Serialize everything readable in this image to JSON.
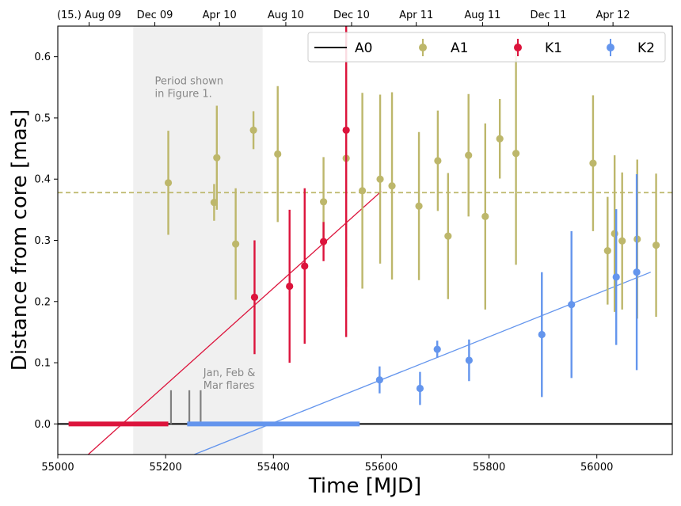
{
  "chart_data": {
    "type": "scatter",
    "xlabel": "Time [MJD]",
    "ylabel": "Distance from core [mas]",
    "xlim": [
      55000,
      56140
    ],
    "ylim": [
      -0.05,
      0.65
    ],
    "x_ticks": [
      "55000",
      "55200",
      "55400",
      "55600",
      "55800",
      "56000"
    ],
    "x_tick_values": [
      55000,
      55200,
      55400,
      55600,
      55800,
      56000
    ],
    "y_ticks": [
      "0.0",
      "0.1",
      "0.2",
      "0.3",
      "0.4",
      "0.5",
      "0.6"
    ],
    "y_tick_values": [
      0.0,
      0.1,
      0.2,
      0.3,
      0.4,
      0.5,
      0.6
    ],
    "top_ticks": [
      {
        "label": "(15.) Aug 09",
        "mjd": 55058
      },
      {
        "label": "Dec 09",
        "mjd": 55180
      },
      {
        "label": "Apr 10",
        "mjd": 55300
      },
      {
        "label": "Aug 10",
        "mjd": 55423
      },
      {
        "label": "Dec 10",
        "mjd": 55545
      },
      {
        "label": "Apr 11",
        "mjd": 55665
      },
      {
        "label": "Aug 11",
        "mjd": 55788
      },
      {
        "label": "Dec 11",
        "mjd": 55910
      },
      {
        "label": "Apr 12",
        "mjd": 56030
      }
    ],
    "shaded_period": {
      "x0": 55140,
      "x1": 55380,
      "label_lines": [
        "Period shown",
        "in Figure 1."
      ]
    },
    "flares_label_lines": [
      "Jan, Feb &",
      "Mar flares"
    ],
    "flare_lines": [
      55210,
      55244,
      55265
    ],
    "flare_line_top": 0.055,
    "a1_mean": 0.378,
    "colors": {
      "A0": "#000000",
      "A1": "#bdb76b",
      "K1": "#dc143c",
      "K2": "#6495ed",
      "shade": "#f0f0f0",
      "flare": "#808080"
    },
    "series": [
      {
        "name": "A0",
        "kind": "line",
        "x": [
          55000,
          56140
        ],
        "y": [
          0,
          0
        ]
      },
      {
        "name": "A1",
        "kind": "errorbar",
        "x": [
          55205,
          55290,
          55295,
          55330,
          55363,
          55408,
          55493,
          55535,
          55565,
          55598,
          55620,
          55670,
          55705,
          55724,
          55762,
          55793,
          55820,
          55850,
          55993,
          56020,
          56033,
          56047,
          56075,
          56110
        ],
        "y": [
          0.394,
          0.362,
          0.435,
          0.294,
          0.48,
          0.441,
          0.363,
          0.434,
          0.381,
          0.4,
          0.389,
          0.356,
          0.43,
          0.307,
          0.439,
          0.339,
          0.466,
          0.442,
          0.426,
          0.283,
          0.311,
          0.299,
          0.302,
          0.292
        ],
        "yerr": [
          0.085,
          0.03,
          0.085,
          0.091,
          0.031,
          0.111,
          0.073,
          0.21,
          0.16,
          0.138,
          0.153,
          0.121,
          0.082,
          0.103,
          0.1,
          0.152,
          0.065,
          0.182,
          0.111,
          0.088,
          0.128,
          0.112,
          0.13,
          0.117
        ]
      },
      {
        "name": "K1",
        "kind": "errorbar",
        "x": [
          55365,
          55430,
          55458,
          55493,
          55535
        ],
        "y": [
          0.207,
          0.225,
          0.258,
          0.298,
          0.48
        ],
        "yerr": [
          0.093,
          0.125,
          0.127,
          0.032,
          0.338
        ]
      },
      {
        "name": "K2",
        "kind": "errorbar",
        "x": [
          55597,
          55672,
          55704,
          55763,
          55898,
          55953,
          56036,
          56074
        ],
        "y": [
          0.072,
          0.058,
          0.122,
          0.104,
          0.146,
          0.195,
          0.24,
          0.248
        ],
        "yerr": [
          0.022,
          0.027,
          0.014,
          0.034,
          0.102,
          0.12,
          0.111,
          0.16
        ]
      }
    ],
    "fits": [
      {
        "name": "K1 fit",
        "x": [
          55050,
          55600
        ],
        "y": [
          -0.055,
          0.38
        ]
      },
      {
        "name": "K2 fit",
        "x": [
          55253,
          56100
        ],
        "y": [
          -0.05,
          0.248
        ]
      }
    ],
    "ejection_intervals": [
      {
        "name": "K1 ejection",
        "x0": 55020,
        "x1": 55205
      },
      {
        "name": "K2 ejection",
        "x0": 55240,
        "x1": 55560
      }
    ],
    "legend": [
      "A0",
      "A1",
      "K1",
      "K2"
    ]
  }
}
